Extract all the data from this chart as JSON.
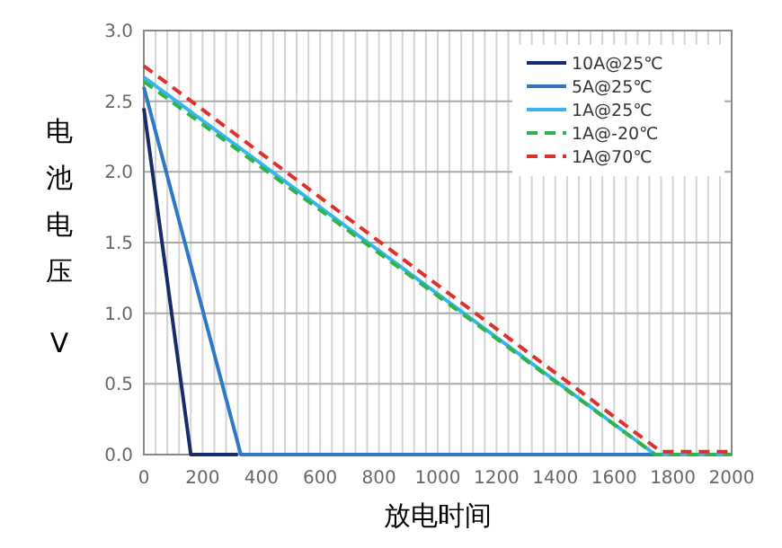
{
  "chart_data": {
    "type": "line",
    "xlabel": "放电时间",
    "ylabel": "电池电压 V",
    "xlim": [
      0,
      2000
    ],
    "xticks": [
      0,
      200,
      400,
      600,
      800,
      1000,
      1200,
      1400,
      1600,
      1800,
      2000
    ],
    "ylim": [
      0,
      3
    ],
    "yticks": [
      {
        "value": 0,
        "label": "0.0"
      },
      {
        "value": 0.5,
        "label": "0.5"
      },
      {
        "value": 1,
        "label": "1.0"
      },
      {
        "value": 1.5,
        "label": "1.5"
      },
      {
        "value": 2,
        "label": "2.0"
      },
      {
        "value": 2.5,
        "label": "2.5"
      },
      {
        "value": 3,
        "label": "3.0"
      }
    ],
    "grid": true,
    "legend": "top right",
    "marker": "none",
    "series": [
      {
        "name": "10A@25℃",
        "color": "#1b2a68",
        "x": [
          0,
          160,
          320
        ],
        "values": [
          2.45,
          0,
          0
        ]
      },
      {
        "name": "5A@25℃",
        "color": "#2e78c8",
        "x": [
          0,
          330,
          2000
        ],
        "values": [
          2.6,
          0,
          0
        ]
      },
      {
        "name": "1A@25℃",
        "color": "#35b6ef",
        "x": [
          0,
          1740,
          2000
        ],
        "values": [
          2.67,
          0,
          0
        ]
      },
      {
        "name": "1A@-20℃",
        "color": "#2fb34a",
        "line_style": "dashed",
        "x": [
          0,
          1740,
          2000
        ],
        "values": [
          2.64,
          0,
          0
        ]
      },
      {
        "name": "1A@70℃",
        "color": "#e0302c",
        "line_style": "dashed",
        "x": [
          0,
          1760,
          2000
        ],
        "values": [
          2.75,
          0.02,
          0.02
        ]
      }
    ]
  }
}
